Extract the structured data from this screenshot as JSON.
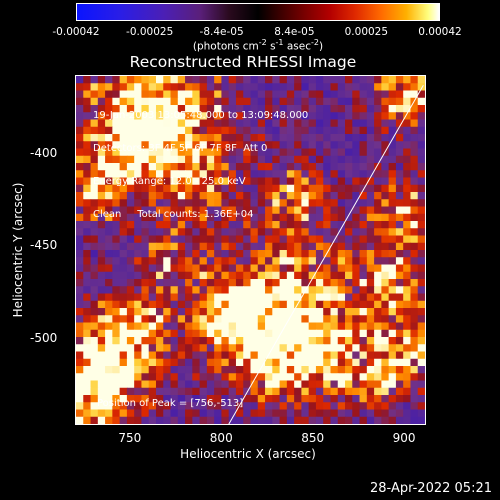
{
  "chart_data": {
    "type": "heatmap",
    "title": "Reconstructed RHESSI Image",
    "colorbar": {
      "ticks": [
        "-0.00042",
        "-0.00025",
        "-8.4e-05",
        "8.4e-05",
        "0.00025",
        "0.00042"
      ],
      "tick_values": [
        -0.00042,
        -0.00025,
        -8.4e-05,
        8.4e-05,
        0.00025,
        0.00042
      ],
      "range": [
        -0.00042,
        0.00042
      ],
      "unit_prefix": "(photons cm",
      "unit_exp1": "-2",
      "unit_mid1": " s",
      "unit_exp2": "-1",
      "unit_mid2": " asec",
      "unit_exp3": "-2",
      "unit_suffix": ")"
    },
    "xlabel": "Heliocentric X (arcsec)",
    "ylabel": "Heliocentric Y (arcsec)",
    "xlim": [
      720,
      912
    ],
    "ylim": [
      -547,
      -358
    ],
    "xticks": [
      750,
      800,
      850,
      900
    ],
    "yticks": [
      -400,
      -450,
      -500
    ],
    "info_lines": [
      "19-Jan-2003 13:05:48.000 to 13:09:48.000",
      "Detectors: 3F 4F 5F 6F 7F 8F  Att 0",
      "Energy Range: 12.0 - 25.0 keV",
      "Clean     Total counts: 1.36E+04"
    ],
    "peak_text": "Position of Peak = [756,-513]",
    "limb_line": {
      "x": [
        803,
        910
      ],
      "y": [
        -547,
        -363
      ]
    }
  },
  "footer_date": "28-Apr-2022 05:21"
}
